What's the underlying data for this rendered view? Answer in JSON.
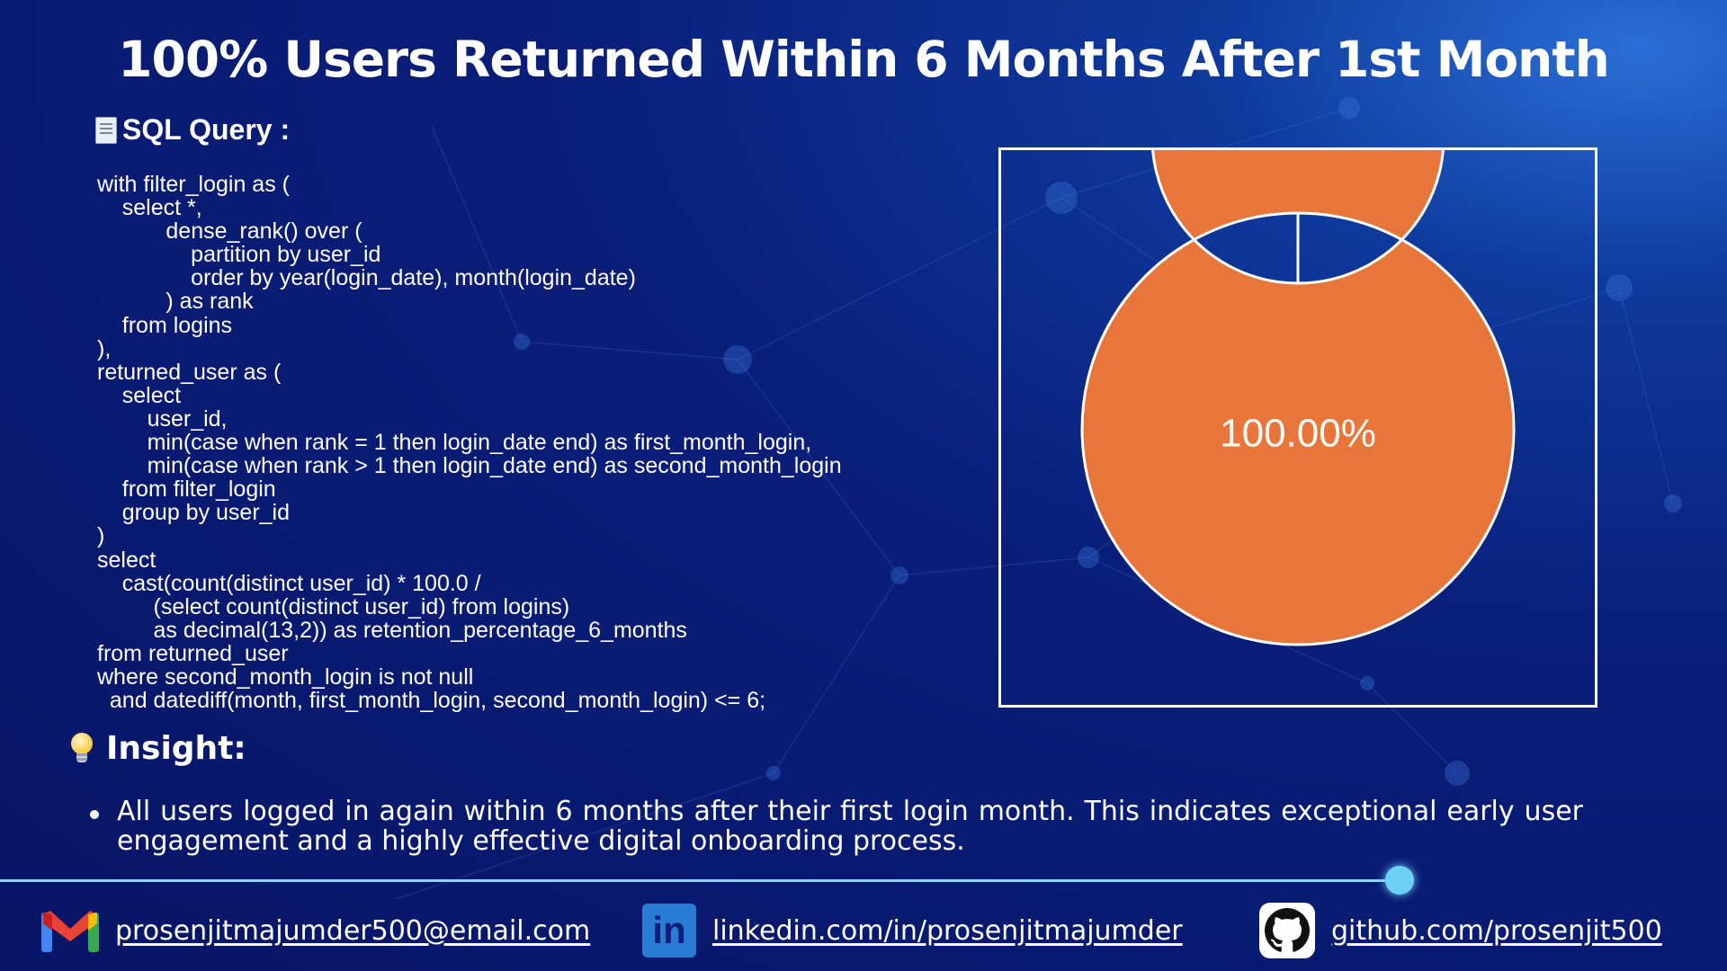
{
  "title": "100% Users Returned Within 6 Months After 1st Month",
  "sql_section": {
    "heading": "SQL Query :",
    "icon": "document-icon",
    "code": "with filter_login as (\n    select *,\n           dense_rank() over (\n               partition by user_id\n               order by year(login_date), month(login_date)\n           ) as rank\n    from logins\n),\nreturned_user as (\n    select\n        user_id,\n        min(case when rank = 1 then login_date end) as first_month_login,\n        min(case when rank > 1 then login_date end) as second_month_login\n    from filter_login\n    group by user_id\n)\nselect\n    cast(count(distinct user_id) * 100.0 /\n         (select count(distinct user_id) from logins)\n         as decimal(13,2)) as retention_percentage_6_months\nfrom returned_user\nwhere second_month_login is not null\n  and datediff(month, first_month_login, second_month_login) <= 6;"
  },
  "chart_data": {
    "type": "pie",
    "donut": true,
    "categories": [
      ""
    ],
    "values": [
      100.0
    ],
    "center_label": "100.00%",
    "colors": [
      "#e8763a"
    ],
    "title": "",
    "legend": false
  },
  "insight": {
    "heading": "Insight:",
    "icon": "lightbulb-icon",
    "items": [
      "All users logged in again within 6 months after their first login month. This indicates exceptional early user engagement and a highly effective digital onboarding process."
    ]
  },
  "footer": {
    "email": {
      "icon": "gmail-icon",
      "text": "prosenjitmajumder500@email.com"
    },
    "linkedin": {
      "icon": "linkedin-icon",
      "text": "linkedin.com/in/prosenjitmajumder"
    },
    "github": {
      "icon": "github-icon",
      "text": "github.com/prosenjit500"
    }
  },
  "colors": {
    "background": "#0a1f7a",
    "donut": "#e8763a",
    "divider": "#8fd3f5"
  }
}
